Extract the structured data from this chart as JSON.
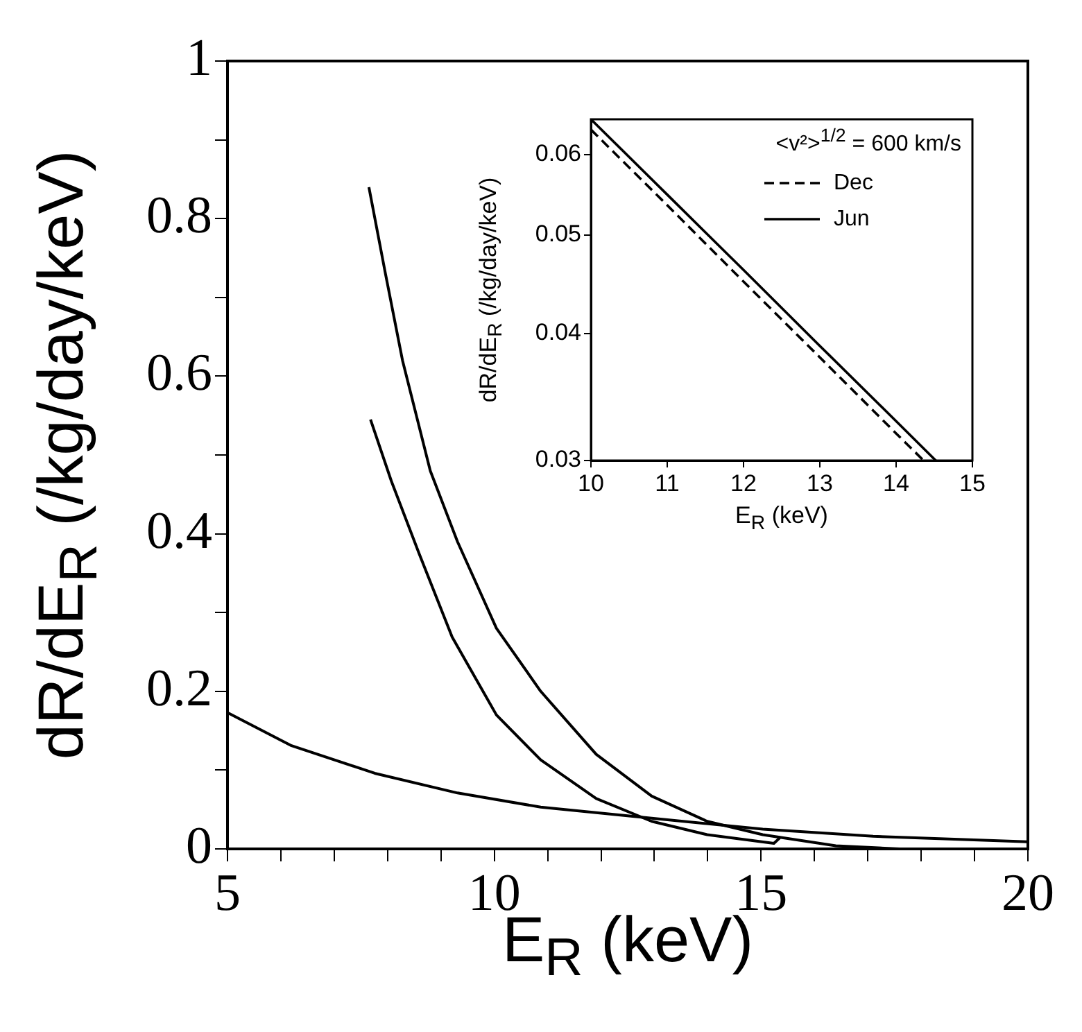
{
  "chart_data": [
    {
      "type": "line",
      "xlabel": "E$_{R}$ (keV)",
      "ylabel": "dR/dE$_{R}$ (/kg/day/keV)",
      "xlim": [
        5,
        20
      ],
      "xticks": [
        5,
        {
          "value": 6,
          "label": null
        },
        {
          "value": 7,
          "label": null
        },
        {
          "value": 8,
          "label": null
        },
        {
          "value": 9,
          "label": null
        },
        10,
        {
          "value": 11,
          "label": null
        },
        {
          "value": 12,
          "label": null
        },
        {
          "value": 13,
          "label": null
        },
        {
          "value": 14,
          "label": null
        },
        15,
        {
          "value": 16,
          "label": null
        },
        {
          "value": 17,
          "label": null
        },
        {
          "value": 18,
          "label": null
        },
        {
          "value": 19,
          "label": null
        },
        20
      ],
      "ylim": [
        0,
        1
      ],
      "yticks": [
        0,
        {
          "value": 0.1,
          "label": null
        },
        0.2,
        {
          "value": 0.3,
          "label": null
        },
        0.4,
        {
          "value": 0.5,
          "label": null
        },
        0.6,
        {
          "value": 0.7,
          "label": null
        },
        0.8,
        {
          "value": 0.9,
          "label": null
        },
        1
      ],
      "series": [
        {
          "color": "#000000",
          "x": [
            7.65,
            7.96,
            8.28,
            8.8,
            9.31,
            10.04,
            10.87,
            11.91,
            12.95,
            13.99,
            15.03,
            16.4,
            17.6
          ],
          "values": [
            0.84,
            0.73,
            0.62,
            0.48,
            0.39,
            0.28,
            0.2,
            0.12,
            0.067,
            0.035,
            0.018,
            0.004,
            0
          ]
        },
        {
          "color": "#000000",
          "x": [
            7.68,
            8.07,
            8.59,
            9.21,
            10.04,
            10.87,
            11.91,
            12.95,
            13.99,
            15.24,
            15.35
          ],
          "values": [
            0.545,
            0.467,
            0.375,
            0.269,
            0.17,
            0.113,
            0.064,
            0.035,
            0.018,
            0.007,
            0.014
          ]
        },
        {
          "color": "#000000",
          "x": [
            5,
            6.2,
            7.76,
            9.31,
            10.87,
            12.95,
            15.03,
            17.1,
            20
          ],
          "values": [
            0.173,
            0.131,
            0.096,
            0.071,
            0.053,
            0.039,
            0.025,
            0.016,
            0.009
          ]
        }
      ]
    },
    {
      "type": "line",
      "xlabel": "E$_{R}$ (keV)",
      "ylabel": "dR/dE$_{R}$ (/kg/day/keV)",
      "legend_title": "<v²>$^{1/2}$ = 600 km/s",
      "legend": "top right",
      "log": "y",
      "xlim": [
        10,
        15
      ],
      "xticks": [
        10,
        11,
        12,
        13,
        14,
        15
      ],
      "ylim": [
        0.03,
        0.065
      ],
      "yticks": [
        0.03,
        0.04,
        0.05,
        0.06
      ],
      "series": [
        {
          "name": "Dec",
          "color": "#000000",
          "line_style": "dashed",
          "x": [
            10,
            11,
            12,
            13,
            14,
            14.36
          ],
          "values": [
            0.0635,
            0.0535,
            0.045,
            0.0379,
            0.0319,
            0.03
          ]
        },
        {
          "name": "Jun",
          "color": "#000000",
          "line_style": "solid",
          "x": [
            10,
            11,
            12,
            13,
            14,
            14.52
          ],
          "values": [
            0.065,
            0.0548,
            0.0462,
            0.0389,
            0.0328,
            0.03
          ]
        }
      ]
    }
  ]
}
